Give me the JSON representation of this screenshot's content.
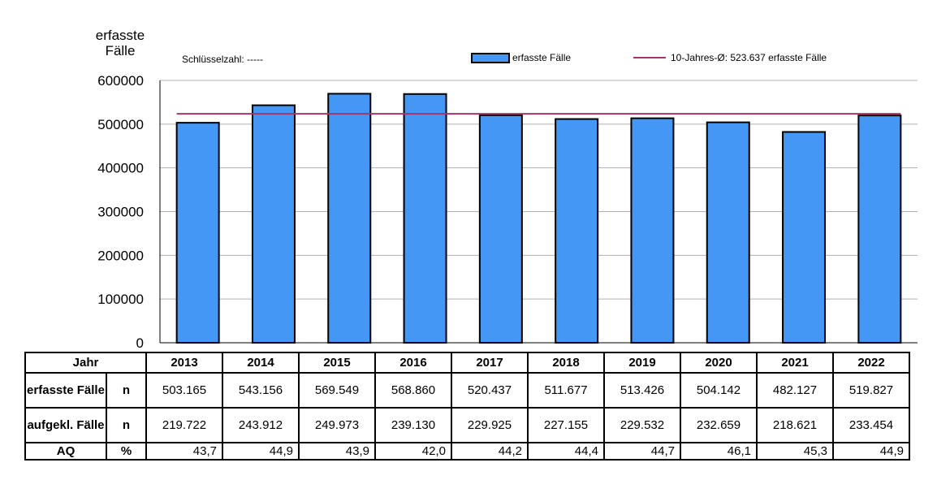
{
  "chart_data": {
    "type": "bar",
    "ylabel": "erfasste Fälle",
    "key_figure": "Schlüsselzahl: -----",
    "categories": [
      "2013",
      "2014",
      "2015",
      "2016",
      "2017",
      "2018",
      "2019",
      "2020",
      "2021",
      "2022"
    ],
    "series": [
      {
        "name": "erfasste Fälle",
        "values": [
          503165,
          543156,
          569549,
          568860,
          520437,
          511677,
          513426,
          504142,
          482127,
          519827
        ],
        "color": "#4497f5"
      }
    ],
    "average_line": {
      "name": "10-Jahres-Ø: 523.637 erfasste Fälle",
      "value": 523637,
      "color": "#a4356a"
    },
    "ylim": [
      0,
      600000
    ],
    "yticks": [
      "0",
      "100000",
      "200000",
      "300000",
      "400000",
      "500000",
      "600000"
    ],
    "grid": true,
    "legend_position": "top"
  },
  "table": {
    "year_header": "Jahr",
    "years": [
      "2013",
      "2014",
      "2015",
      "2016",
      "2017",
      "2018",
      "2019",
      "2020",
      "2021",
      "2022"
    ],
    "rows": [
      {
        "label": "erfasste Fälle",
        "unit": "n",
        "values": [
          "503.165",
          "543.156",
          "569.549",
          "568.860",
          "520.437",
          "511.677",
          "513.426",
          "504.142",
          "482.127",
          "519.827"
        ]
      },
      {
        "label": "aufgekl. Fälle",
        "unit": "n",
        "values": [
          "219.722",
          "243.912",
          "249.973",
          "239.130",
          "229.925",
          "227.155",
          "229.532",
          "232.659",
          "218.621",
          "233.454"
        ]
      },
      {
        "label": "AQ",
        "unit": "%",
        "values": [
          "43,7",
          "44,9",
          "43,9",
          "42,0",
          "44,2",
          "44,4",
          "44,7",
          "46,1",
          "45,3",
          "44,9"
        ]
      }
    ]
  }
}
